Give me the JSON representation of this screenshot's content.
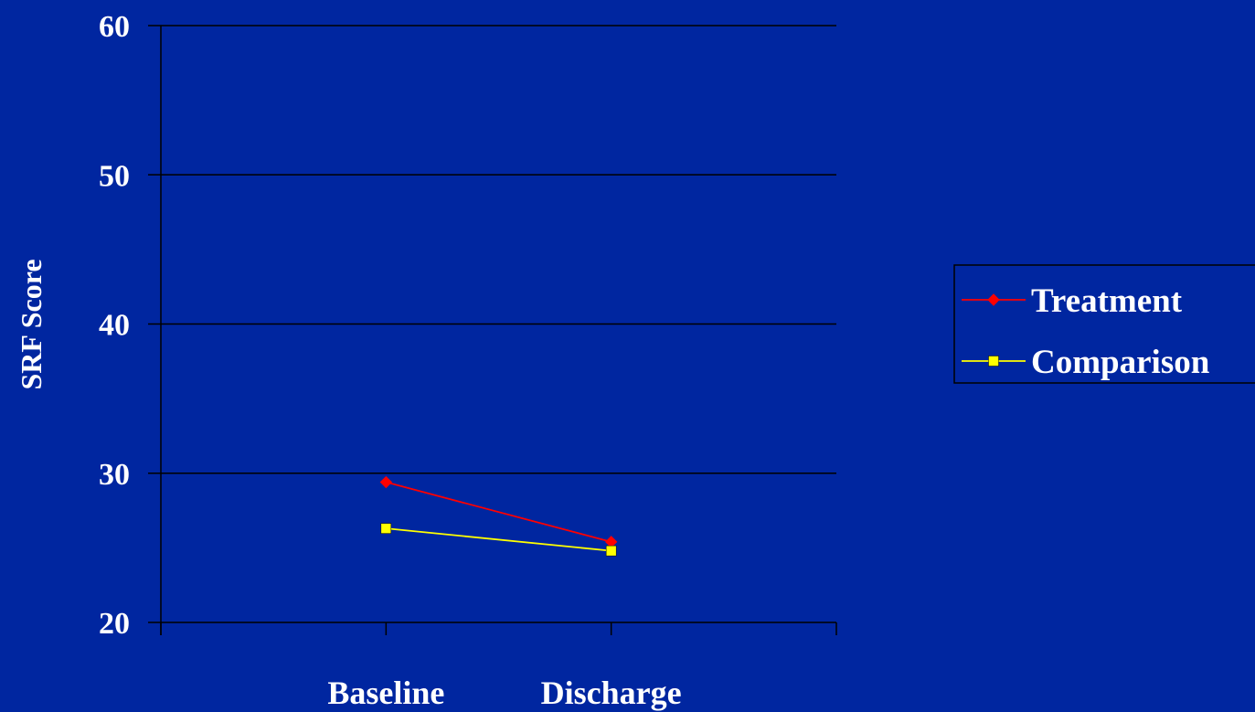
{
  "colors": {
    "background": "#0026a0",
    "axis": "#000000",
    "treatment": "#ff0000",
    "comparison": "#ffff00",
    "text": "#ffffff"
  },
  "chart_data": {
    "type": "line",
    "title": "",
    "xlabel": "",
    "ylabel": "SRF Score",
    "categories": [
      "Baseline",
      "Discharge"
    ],
    "y_ticks": [
      60,
      50,
      40,
      30,
      20
    ],
    "ylim": [
      20,
      60
    ],
    "grid": true,
    "legend_position": "right",
    "series": [
      {
        "name": "Treatment",
        "marker": "diamond",
        "color": "#ff0000",
        "values": [
          29.4,
          25.4
        ]
      },
      {
        "name": "Comparison",
        "marker": "square",
        "color": "#ffff00",
        "values": [
          26.3,
          24.8
        ]
      }
    ]
  }
}
